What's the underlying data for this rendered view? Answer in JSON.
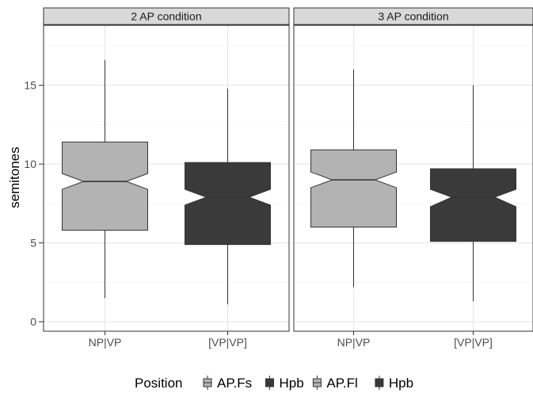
{
  "chart_data": {
    "type": "boxplot",
    "notched": true,
    "ylabel": "semitones",
    "yticks": [
      0,
      5,
      10,
      15
    ],
    "ylim": [
      -0.6,
      18.8
    ],
    "categories": [
      "NP|VP",
      "[VP|VP]"
    ],
    "grid": true,
    "legend": {
      "position": "bottom",
      "title": "Position",
      "entries": [
        {
          "label": "AP.Fs",
          "color": "#b3b3b3"
        },
        {
          "label": "Hpb",
          "color": "#3a3a3a"
        },
        {
          "label": "AP.Fl",
          "color": "#b3b3b3"
        },
        {
          "label": "Hpb",
          "color": "#3a3a3a"
        }
      ]
    },
    "panels": [
      {
        "title": "2 AP condition",
        "boxes": [
          {
            "category": "NP|VP",
            "color": "#b3b3b3",
            "min": 1.5,
            "q1": 5.8,
            "median": 8.9,
            "q3": 11.4,
            "max": 16.6,
            "notch_low": 8.4,
            "notch_high": 9.4
          },
          {
            "category": "[VP|VP]",
            "color": "#3a3a3a",
            "min": 1.1,
            "q1": 4.9,
            "median": 7.9,
            "q3": 10.1,
            "max": 14.8,
            "notch_low": 7.4,
            "notch_high": 8.4
          }
        ]
      },
      {
        "title": "3 AP condition",
        "boxes": [
          {
            "category": "NP|VP",
            "color": "#b3b3b3",
            "min": 2.2,
            "q1": 6.0,
            "median": 9.0,
            "q3": 10.9,
            "max": 16.0,
            "notch_low": 8.5,
            "notch_high": 9.5
          },
          {
            "category": "[VP|VP]",
            "color": "#3a3a3a",
            "min": 1.3,
            "q1": 5.1,
            "median": 7.9,
            "q3": 9.7,
            "max": 15.0,
            "notch_low": 7.3,
            "notch_high": 8.4
          }
        ]
      }
    ]
  }
}
